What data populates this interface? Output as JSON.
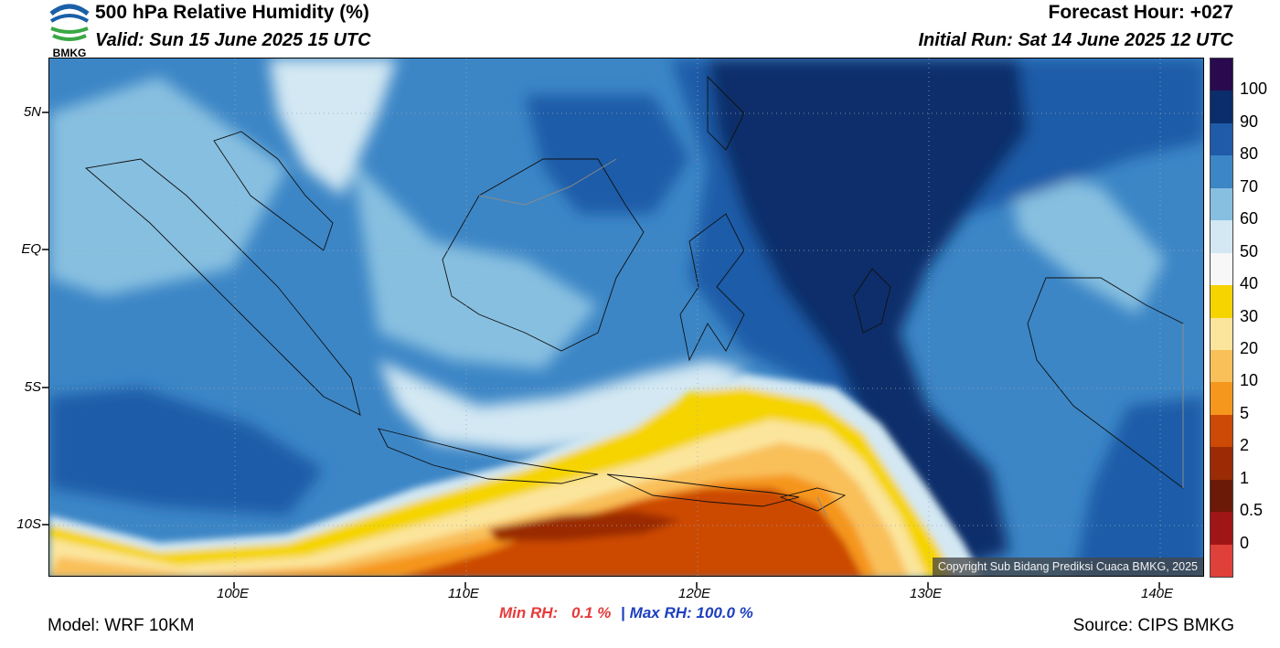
{
  "header": {
    "title": "500 hPa Relative Humidity (%)",
    "valid": "Valid: Sun 15 June 2025 15 UTC",
    "forecast_hour": "Forecast Hour: +027",
    "initial_run": "Initial Run: Sat 14 June 2025 12 UTC",
    "logo_text": "BMKG"
  },
  "axes": {
    "lat_ticks": [
      "5N",
      "EQ",
      "5S",
      "10S"
    ],
    "lon_ticks": [
      "100E",
      "110E",
      "120E",
      "130E",
      "140E"
    ]
  },
  "colorbar": {
    "labels": [
      "100",
      "90",
      "80",
      "70",
      "60",
      "50",
      "40",
      "30",
      "20",
      "10",
      "5",
      "2",
      "1",
      "0.5",
      "0"
    ],
    "colors": [
      "#2a0a4e",
      "#0b2d6b",
      "#1f5ba8",
      "#3c86c6",
      "#87bfe0",
      "#d3e8f3",
      "#f7f7f7",
      "#f5d400",
      "#fbe59c",
      "#f9c05a",
      "#f5961d",
      "#cc4a05",
      "#9a2b05",
      "#6b1a08",
      "#a01515",
      "#e0403a"
    ]
  },
  "footer": {
    "model": "Model: WRF 10KM",
    "min_label": "Min RH:",
    "min_value": "0.1 %",
    "separator": "|",
    "max_label": "Max RH: 100.0 %",
    "source": "Source: CIPS BMKG",
    "copyright": "Copyright Sub Bidang Prediksi Cuaca BMKG, 2025"
  }
}
